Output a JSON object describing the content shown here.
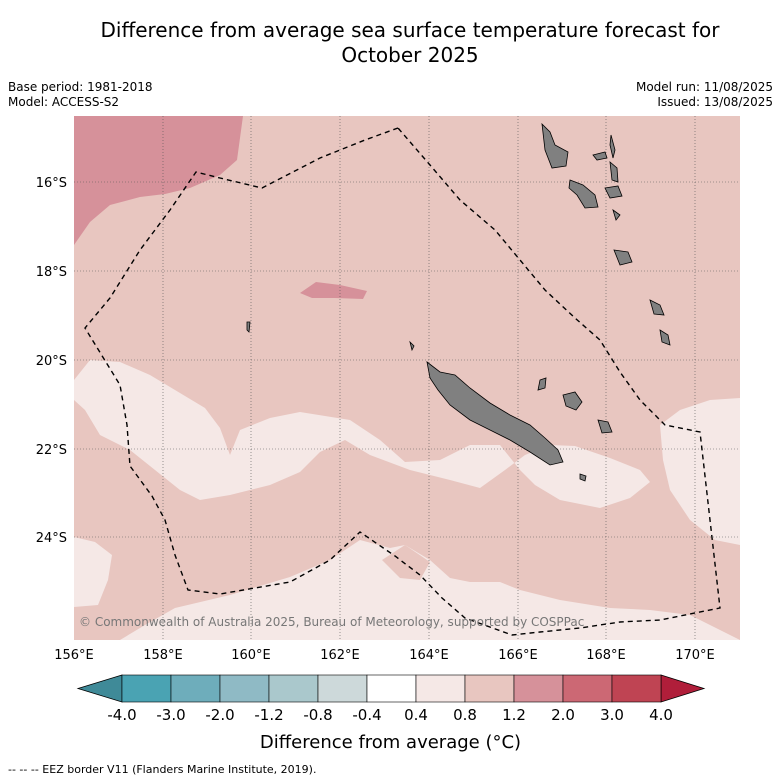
{
  "title_line1": "Difference from average sea surface temperature forecast for",
  "title_line2": "October 2025",
  "base_period": "Base period: 1981-2018",
  "model": "Model: ACCESS-S2",
  "model_run": "Model run: 11/08/2025",
  "issued": "Issued: 13/08/2025",
  "copyright": "© Commonwealth of Australia 2025, Bureau of Meteorology, supported by COSPPac",
  "x_ticks": [
    "156°E",
    "158°E",
    "160°E",
    "162°E",
    "164°E",
    "166°E",
    "168°E",
    "170°E"
  ],
  "y_ticks": [
    "16°S",
    "18°S",
    "20°S",
    "22°S",
    "24°S"
  ],
  "colorbar": {
    "labels": [
      "-4.0",
      "-3.0",
      "-2.0",
      "-1.2",
      "-0.8",
      "-0.4",
      "0.4",
      "0.8",
      "1.2",
      "2.0",
      "3.0",
      "4.0"
    ],
    "colors": [
      "#4aa3b3",
      "#6eadbb",
      "#8fbac5",
      "#aac8cc",
      "#cdd9da",
      "#ffffff",
      "#f5e8e6",
      "#e8c6c0",
      "#d6919a",
      "#cc6874",
      "#bf4453"
    ],
    "low_extend_color": "#3f8a98",
    "high_extend_color": "#b01e3a",
    "title": "Difference from average (°C)"
  },
  "map_colors": {
    "warm_0_4_0_8": "#f5e8e6",
    "warm_0_8_1_2": "#e8c6c0",
    "warm_1_2_2_0": "#d6919a",
    "land": "#808080"
  },
  "footer": "-- -- -- EEZ border V11 (Flanders Marine Institute, 2019)."
}
